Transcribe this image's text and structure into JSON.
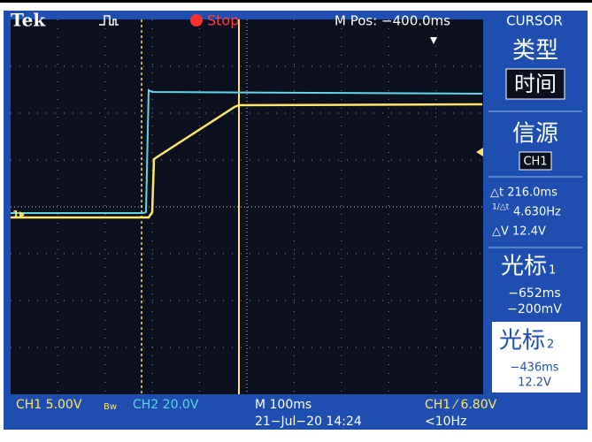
{
  "header": {
    "brand": "Tek",
    "run_state": "Stop",
    "position": "M Pos: −400.0ms",
    "menu_title": "CURSOR"
  },
  "menu": {
    "type_label": "类型",
    "type_value": "时间",
    "source_label": "信源",
    "source_value": "CH1",
    "delta_t": "△t 216.0ms",
    "inv_delta_t": "4.630Hz",
    "delta_v": "△V 12.4V",
    "cursor1": {
      "label": "光标",
      "index": "1",
      "time": "−652ms",
      "level": "−200mV"
    },
    "cursor2": {
      "label": "光标",
      "index": "2",
      "time": "−436ms",
      "level": "12.2V"
    }
  },
  "footer": {
    "ch1": "CH1  5.00V",
    "ch1_bw": "Bw",
    "ch2": "CH2  20.0V",
    "timebase": "M 100ms",
    "date": "21−Jul−20 14:24",
    "trigger": "CH1 ⁄ 6.80V",
    "frequency": "<10Hz"
  },
  "markers": {
    "ch1": "1"
  }
}
